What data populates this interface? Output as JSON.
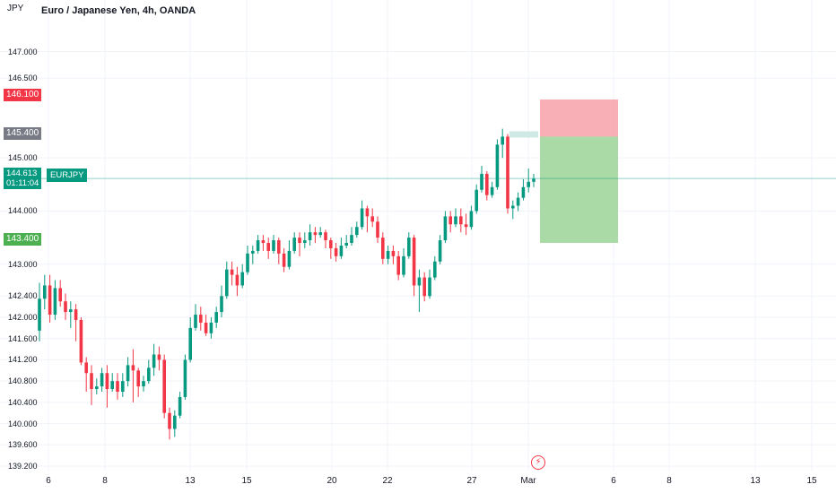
{
  "header": {
    "title": "Euro / Japanese Yen, 4h, OANDA",
    "unit": "JPY"
  },
  "axis": {
    "y_ticks": [
      "147.000",
      "146.500",
      "145.000",
      "144.000",
      "143.000",
      "142.400",
      "142.000",
      "141.600",
      "141.200",
      "140.800",
      "140.400",
      "140.000",
      "139.600",
      "139.200"
    ],
    "x_ticks": [
      "6",
      "8",
      "13",
      "15",
      "20",
      "22",
      "27",
      "Mar",
      "6",
      "8",
      "13",
      "15"
    ]
  },
  "badges": {
    "stop": {
      "price": "146.100",
      "color": "#f23645"
    },
    "entry": {
      "price": "145.400",
      "color": "#787b86"
    },
    "target": {
      "price": "143.400",
      "color": "#4caf50"
    },
    "current": {
      "price": "144.613",
      "countdown": "01:11:04",
      "symbol": "EURJPY"
    }
  },
  "events": {
    "icon": "lightning-icon"
  },
  "colors": {
    "up": "#089981",
    "down": "#f23645",
    "risk_zone": "#f7a1a8",
    "reward_zone": "#a5d8a0"
  },
  "chart_data": {
    "type": "candlestick",
    "title": "Euro / Japanese Yen, 4h, OANDA",
    "ylabel": "JPY",
    "ylim": [
      139.2,
      147.55
    ],
    "x_range": [
      "2023-02-06",
      "2023-03-16"
    ],
    "grid": true,
    "candles": [
      [
        141.75,
        142.35,
        142.65,
        141.55
      ],
      [
        142.35,
        142.6,
        142.8,
        142.15
      ],
      [
        142.6,
        142.05,
        142.8,
        141.9
      ],
      [
        142.05,
        142.55,
        142.7,
        141.95
      ],
      [
        142.55,
        142.3,
        142.7,
        142.2
      ],
      [
        142.3,
        142.1,
        142.45,
        141.95
      ],
      [
        142.1,
        142.15,
        142.3,
        141.8
      ],
      [
        142.15,
        141.95,
        142.25,
        141.55
      ],
      [
        141.95,
        141.15,
        142.0,
        141.1
      ],
      [
        141.15,
        140.95,
        141.25,
        140.6
      ],
      [
        140.95,
        140.65,
        141.1,
        140.35
      ],
      [
        140.65,
        140.7,
        140.85,
        140.55
      ],
      [
        140.7,
        140.95,
        141.05,
        140.6
      ],
      [
        140.95,
        140.65,
        141.1,
        140.3
      ],
      [
        140.65,
        140.8,
        140.95,
        140.6
      ],
      [
        140.8,
        140.6,
        140.95,
        140.45
      ],
      [
        140.6,
        140.8,
        140.95,
        140.5
      ],
      [
        140.8,
        141.1,
        141.25,
        140.7
      ],
      [
        141.1,
        141.0,
        141.4,
        140.4
      ],
      [
        141.0,
        140.7,
        141.05,
        140.5
      ],
      [
        140.7,
        140.8,
        140.9,
        140.6
      ],
      [
        140.8,
        141.05,
        141.2,
        140.75
      ],
      [
        141.05,
        141.3,
        141.5,
        140.9
      ],
      [
        141.3,
        141.2,
        141.45,
        141.0
      ],
      [
        141.2,
        140.2,
        141.3,
        140.1
      ],
      [
        140.2,
        139.9,
        140.3,
        139.7
      ],
      [
        139.9,
        140.15,
        140.25,
        139.75
      ],
      [
        140.15,
        140.5,
        140.6,
        140.1
      ],
      [
        140.5,
        141.2,
        141.3,
        140.45
      ],
      [
        141.2,
        141.8,
        142.0,
        141.15
      ],
      [
        141.8,
        142.05,
        142.25,
        141.75
      ],
      [
        142.05,
        141.9,
        142.2,
        141.75
      ],
      [
        141.9,
        141.7,
        142.05,
        141.65
      ],
      [
        141.7,
        141.9,
        142.0,
        141.6
      ],
      [
        141.9,
        142.1,
        142.2,
        141.8
      ],
      [
        142.1,
        142.4,
        142.6,
        142.0
      ],
      [
        142.4,
        142.9,
        143.05,
        142.35
      ],
      [
        142.9,
        142.8,
        143.05,
        142.6
      ],
      [
        142.8,
        142.6,
        142.95,
        142.4
      ],
      [
        142.6,
        142.85,
        143.0,
        142.55
      ],
      [
        142.85,
        143.2,
        143.35,
        142.8
      ],
      [
        143.2,
        143.25,
        143.35,
        143.0
      ],
      [
        143.25,
        143.45,
        143.55,
        143.2
      ],
      [
        143.45,
        143.4,
        143.55,
        143.25
      ],
      [
        143.4,
        143.25,
        143.5,
        143.1
      ],
      [
        143.25,
        143.45,
        143.55,
        143.2
      ],
      [
        143.45,
        143.2,
        143.5,
        143.0
      ],
      [
        143.2,
        142.95,
        143.3,
        142.85
      ],
      [
        142.95,
        143.25,
        143.45,
        142.9
      ],
      [
        143.25,
        143.5,
        143.6,
        143.2
      ],
      [
        143.5,
        143.4,
        143.6,
        143.15
      ],
      [
        143.4,
        143.45,
        143.6,
        143.3
      ],
      [
        143.45,
        143.6,
        143.75,
        143.35
      ],
      [
        143.6,
        143.55,
        143.7,
        143.4
      ],
      [
        143.55,
        143.6,
        143.7,
        143.5
      ],
      [
        143.6,
        143.45,
        143.65,
        143.3
      ],
      [
        143.45,
        143.3,
        143.5,
        143.1
      ],
      [
        143.3,
        143.15,
        143.4,
        143.05
      ],
      [
        143.15,
        143.35,
        143.5,
        143.1
      ],
      [
        143.35,
        143.4,
        143.55,
        143.3
      ],
      [
        143.4,
        143.55,
        143.7,
        143.35
      ],
      [
        143.55,
        143.7,
        143.8,
        143.5
      ],
      [
        143.7,
        144.05,
        144.2,
        143.65
      ],
      [
        144.05,
        143.9,
        144.1,
        143.6
      ],
      [
        143.9,
        143.8,
        144.05,
        143.7
      ],
      [
        143.8,
        143.5,
        143.9,
        143.4
      ],
      [
        143.5,
        143.1,
        143.6,
        143.0
      ],
      [
        143.1,
        143.25,
        143.35,
        143.0
      ],
      [
        143.25,
        143.15,
        143.35,
        143.0
      ],
      [
        143.15,
        142.8,
        143.25,
        142.7
      ],
      [
        142.8,
        143.15,
        143.3,
        142.75
      ],
      [
        143.15,
        143.5,
        143.6,
        143.1
      ],
      [
        143.5,
        142.6,
        143.55,
        142.4
      ],
      [
        142.6,
        142.75,
        142.9,
        142.1
      ],
      [
        142.75,
        142.4,
        142.85,
        142.3
      ],
      [
        142.4,
        142.75,
        142.9,
        142.35
      ],
      [
        142.75,
        143.05,
        143.15,
        142.7
      ],
      [
        143.05,
        143.45,
        143.55,
        143.0
      ],
      [
        143.45,
        143.9,
        144.0,
        143.4
      ],
      [
        143.9,
        143.75,
        144.0,
        143.6
      ],
      [
        143.75,
        143.9,
        144.05,
        143.7
      ],
      [
        143.9,
        143.75,
        144.05,
        143.6
      ],
      [
        143.75,
        143.7,
        143.95,
        143.55
      ],
      [
        143.7,
        144.0,
        144.1,
        143.65
      ],
      [
        144.0,
        144.4,
        144.5,
        143.95
      ],
      [
        144.4,
        144.7,
        144.85,
        144.35
      ],
      [
        144.7,
        144.3,
        144.75,
        144.2
      ],
      [
        144.3,
        144.45,
        144.55,
        144.25
      ],
      [
        144.45,
        145.25,
        145.35,
        144.4
      ],
      [
        145.25,
        145.4,
        145.55,
        145.0
      ],
      [
        145.4,
        144.05,
        145.45,
        143.95
      ],
      [
        144.05,
        144.1,
        144.2,
        143.85
      ],
      [
        144.1,
        144.25,
        144.35,
        144.0
      ],
      [
        144.25,
        144.45,
        144.6,
        144.2
      ],
      [
        144.45,
        144.55,
        144.8,
        144.35
      ],
      [
        144.55,
        144.61,
        144.7,
        144.45
      ]
    ],
    "position": {
      "type": "short",
      "entry": 145.4,
      "stop": 146.1,
      "target": 143.4
    },
    "current_price": 144.613
  }
}
